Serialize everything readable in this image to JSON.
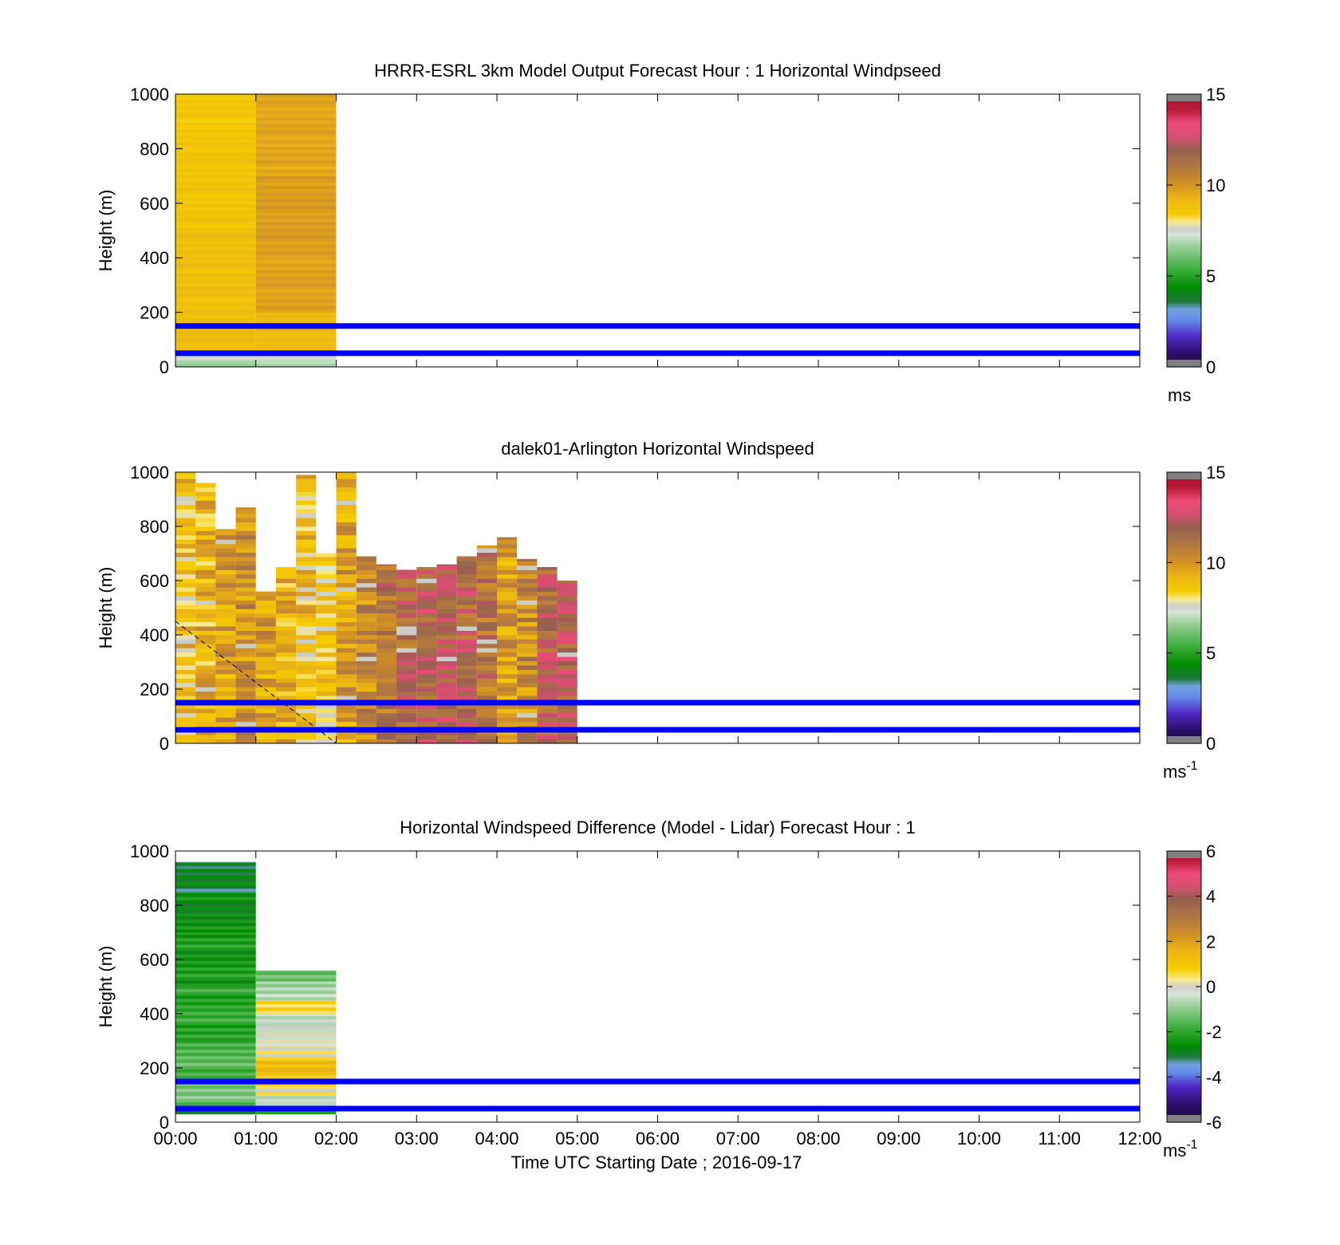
{
  "chart_data": [
    {
      "type": "heatmap",
      "title": "HRRR-ESRL 3km Model Output   Forecast Hour : 1 Horizontal Windpseed",
      "ylabel": "Height (m)",
      "xlabel": "",
      "ylim": [
        0,
        1000
      ],
      "xlim": [
        0,
        12
      ],
      "yticks": [
        "0",
        "200",
        "400",
        "600",
        "800",
        "1000"
      ],
      "xticks": [
        "00:00",
        "01:00",
        "02:00",
        "03:00",
        "04:00",
        "05:00",
        "06:00",
        "07:00",
        "08:00",
        "09:00",
        "10:00",
        "11:00",
        "12:00"
      ],
      "show_xtick_labels": false,
      "reference_lines_m": [
        150,
        50
      ],
      "reference_line_color": "#0000ff",
      "colorbar": {
        "scale": "speed",
        "min": 0,
        "max": 15,
        "ticks": [
          "15",
          "10",
          "5",
          "0"
        ],
        "tick_values": [
          15,
          10,
          5,
          0
        ],
        "unit": "ms",
        "unit_sup": ""
      },
      "columns": [
        {
          "t": 0,
          "dt": 1,
          "cells": [
            [
              0,
              25,
              6.8
            ],
            [
              25,
              45,
              7.3
            ],
            [
              45,
              60,
              7.9
            ],
            [
              60,
              200,
              9.0
            ],
            [
              200,
              500,
              8.9
            ],
            [
              500,
              800,
              8.7
            ],
            [
              800,
              1000,
              8.6
            ]
          ]
        },
        {
          "t": 1,
          "dt": 1,
          "cells": [
            [
              0,
              25,
              6.8
            ],
            [
              25,
              60,
              7.6
            ],
            [
              60,
              200,
              9.1
            ],
            [
              200,
              400,
              9.7
            ],
            [
              400,
              700,
              9.8
            ],
            [
              700,
              1000,
              9.6
            ]
          ]
        }
      ]
    },
    {
      "type": "heatmap",
      "title": "dalek01-Arlington  Horizontal Windspeed",
      "ylabel": "Height (m)",
      "xlabel": "",
      "ylim": [
        0,
        1000
      ],
      "xlim": [
        0,
        12
      ],
      "yticks": [
        "0",
        "200",
        "400",
        "600",
        "800",
        "1000"
      ],
      "xticks": [
        "00:00",
        "01:00",
        "02:00",
        "03:00",
        "04:00",
        "05:00",
        "06:00",
        "07:00",
        "08:00",
        "09:00",
        "10:00",
        "11:00",
        "12:00"
      ],
      "show_xtick_labels": false,
      "reference_lines_m": [
        150,
        50
      ],
      "reference_line_color": "#0000ff",
      "dashed_line": {
        "from": [
          0,
          450
        ],
        "to": [
          2,
          0
        ]
      },
      "colorbar": {
        "scale": "speed",
        "min": 0,
        "max": 15,
        "ticks": [
          "15",
          "10",
          "5",
          "0"
        ],
        "tick_values": [
          15,
          10,
          5,
          0
        ],
        "unit": "ms",
        "unit_sup": "-1"
      },
      "profiles": {
        "dt": 0.25,
        "tops": [
          1000,
          960,
          790,
          870,
          560,
          650,
          990,
          700,
          1000,
          690,
          660,
          640,
          650,
          660,
          690,
          730,
          760,
          680,
          650,
          600
        ],
        "base": [
          8.8,
          9.3,
          9.8,
          10.2,
          9.7,
          9.2,
          8.9,
          8.6,
          9.8,
          10.4,
          11.2,
          11.7,
          12.0,
          12.0,
          11.8,
          11.2,
          9.8,
          10.4,
          11.8,
          12.1
        ]
      }
    },
    {
      "type": "heatmap",
      "title": "Horizontal Windspeed Difference (Model - Lidar) Forecast Hour : 1",
      "ylabel": "Height (m)",
      "xlabel": "Time UTC  Starting Date ; 2016-09-17",
      "ylim": [
        0,
        1000
      ],
      "xlim": [
        0,
        12
      ],
      "yticks": [
        "0",
        "200",
        "400",
        "600",
        "800",
        "1000"
      ],
      "xticks": [
        "00:00",
        "01:00",
        "02:00",
        "03:00",
        "04:00",
        "05:00",
        "06:00",
        "07:00",
        "08:00",
        "09:00",
        "10:00",
        "11:00",
        "12:00"
      ],
      "show_xtick_labels": true,
      "reference_lines_m": [
        150,
        50
      ],
      "reference_line_color": "#0000ff",
      "colorbar": {
        "scale": "diff",
        "min": -6,
        "max": 6,
        "ticks": [
          "6",
          "4",
          "2",
          "0",
          "-2",
          "-4",
          "-6"
        ],
        "tick_values": [
          6,
          4,
          2,
          0,
          -2,
          -4,
          -6
        ],
        "unit": "ms",
        "unit_sup": "-1"
      },
      "columns": [
        {
          "t": 0,
          "dt": 1,
          "cells": [
            [
              30,
              50,
              -2.9
            ],
            [
              50,
              100,
              -1.3
            ],
            [
              100,
              160,
              -1.0
            ],
            [
              160,
              300,
              -1.6
            ],
            [
              300,
              500,
              -2.0
            ],
            [
              500,
              700,
              -2.3
            ],
            [
              700,
              850,
              -2.6
            ],
            [
              850,
              960,
              -2.9
            ]
          ]
        },
        {
          "t": 1,
          "dt": 1,
          "cells": [
            [
              30,
              50,
              -2.5
            ],
            [
              50,
              100,
              -0.6
            ],
            [
              100,
              150,
              0.5
            ],
            [
              150,
              190,
              1.2
            ],
            [
              190,
              230,
              1.4
            ],
            [
              230,
              280,
              0.3
            ],
            [
              280,
              320,
              -0.2
            ],
            [
              320,
              400,
              -0.4
            ],
            [
              400,
              450,
              0.6
            ],
            [
              450,
              520,
              -0.7
            ],
            [
              520,
              560,
              -1.4
            ]
          ]
        }
      ]
    }
  ]
}
